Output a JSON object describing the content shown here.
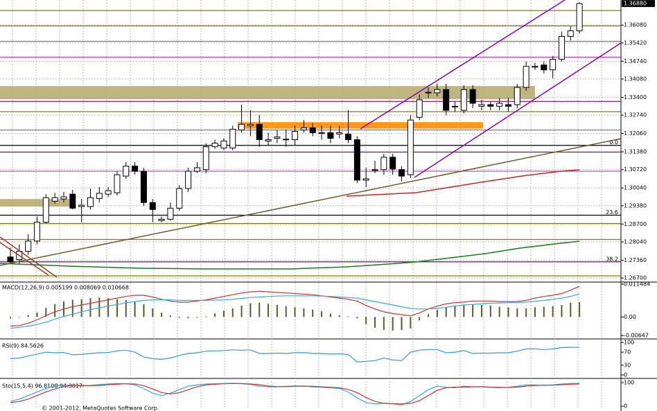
{
  "chart_data": [
    {
      "type": "candlestick",
      "open": [
        1.2748,
        1.2738,
        1.2769,
        1.2807,
        1.2877,
        1.2955,
        1.2963,
        1.2981,
        1.2935,
        1.2935,
        1.2965,
        1.2981,
        1.2986,
        1.3048,
        1.3085,
        1.3066,
        1.295,
        1.2883,
        1.2888,
        1.2929,
        1.3002,
        1.3066,
        1.3072,
        1.3157,
        1.3152,
        1.3152,
        1.3219,
        1.3235,
        1.324,
        1.3178,
        1.3188,
        1.3183,
        1.3183,
        1.3219,
        1.3227,
        1.3206,
        1.3209,
        1.3204,
        1.3204,
        1.3183,
        1.3033,
        1.3069,
        1.3072,
        1.3118,
        1.3072,
        1.3053,
        1.3266,
        1.3357,
        1.3357,
        1.3369,
        1.3305,
        1.3292,
        1.3369,
        1.3307,
        1.3313,
        1.3307,
        1.3313,
        1.3313,
        1.3377,
        1.3452,
        1.346,
        1.3442,
        1.3481,
        1.3566,
        1.3587
      ],
      "high": [
        1.2782,
        1.2795,
        1.2833,
        1.2898,
        1.2981,
        1.2986,
        1.2989,
        1.2997,
        1.2963,
        1.3002,
        1.3007,
        1.3007,
        1.3066,
        1.31,
        1.31,
        1.3079,
        1.2963,
        1.2898,
        1.295,
        1.3015,
        1.3079,
        1.31,
        1.317,
        1.3183,
        1.3188,
        1.3235,
        1.3313,
        1.3292,
        1.3274,
        1.3209,
        1.3219,
        1.3222,
        1.3235,
        1.3256,
        1.3245,
        1.3235,
        1.3235,
        1.3235,
        1.3292,
        1.3196,
        1.3079,
        1.3105,
        1.3131,
        1.3131,
        1.3085,
        1.3274,
        1.3351,
        1.3377,
        1.339,
        1.339,
        1.3325,
        1.3385,
        1.3385,
        1.3331,
        1.3325,
        1.3338,
        1.3338,
        1.339,
        1.3473,
        1.3468,
        1.3473,
        1.3494,
        1.3584,
        1.3603,
        1.3693
      ],
      "low": [
        1.2722,
        1.2722,
        1.2756,
        1.2795,
        1.2872,
        1.2945,
        1.295,
        1.2924,
        1.2877,
        1.2924,
        1.295,
        1.2971,
        1.2976,
        1.3038,
        1.3053,
        1.2937,
        1.2877,
        1.2877,
        1.2883,
        1.2919,
        1.2989,
        1.3059,
        1.3059,
        1.3149,
        1.3144,
        1.3144,
        1.3209,
        1.3196,
        1.3157,
        1.3162,
        1.317,
        1.3157,
        1.3162,
        1.3209,
        1.3196,
        1.3183,
        1.317,
        1.3188,
        1.317,
        1.3022,
        1.3007,
        1.3059,
        1.3053,
        1.3053,
        1.3028,
        1.3041,
        1.3256,
        1.3338,
        1.3344,
        1.3274,
        1.3287,
        1.3281,
        1.33,
        1.3292,
        1.3292,
        1.3292,
        1.3287,
        1.33,
        1.3364,
        1.3442,
        1.3429,
        1.3411,
        1.3473,
        1.3551,
        1.3577
      ],
      "close": [
        1.273,
        1.2769,
        1.2807,
        1.2877,
        1.2968,
        1.2968,
        1.2971,
        1.2929,
        1.294,
        1.2968,
        1.2984,
        1.2994,
        1.3053,
        1.3085,
        1.3066,
        1.295,
        1.2924,
        1.2888,
        1.2929,
        1.3002,
        1.3066,
        1.3079,
        1.3157,
        1.317,
        1.3178,
        1.3222,
        1.324,
        1.324,
        1.3183,
        1.3183,
        1.3193,
        1.3185,
        1.3214,
        1.3227,
        1.3209,
        1.3209,
        1.3188,
        1.3209,
        1.3183,
        1.3033,
        1.3038,
        1.3072,
        1.3118,
        1.3074,
        1.3048,
        1.3256,
        1.3331,
        1.3359,
        1.3369,
        1.3292,
        1.3307,
        1.3369,
        1.3318,
        1.3313,
        1.3307,
        1.3318,
        1.3307,
        1.3377,
        1.3455,
        1.3455,
        1.3442,
        1.3481,
        1.3566,
        1.3587,
        1.3688
      ],
      "ylim": [
        1.266,
        1.3696
      ],
      "yticks": [
        {
          "value": 1.3608,
          "label": "1.36080"
        },
        {
          "value": 1.3542,
          "label": "1.35420"
        },
        {
          "value": 1.3474,
          "label": "1.34740"
        },
        {
          "value": 1.3408,
          "label": "1.34080"
        },
        {
          "value": 1.334,
          "label": "1.33400"
        },
        {
          "value": 1.3274,
          "label": "1.32740"
        },
        {
          "value": 1.3206,
          "label": "1.32060"
        },
        {
          "value": 1.3138,
          "label": "1.31380"
        },
        {
          "value": 1.3072,
          "label": "1.30720"
        },
        {
          "value": 1.3004,
          "label": "1.30040"
        },
        {
          "value": 1.2938,
          "label": "1.29380"
        },
        {
          "value": 1.287,
          "label": "1.28700"
        },
        {
          "value": 1.2804,
          "label": "1.28040"
        },
        {
          "value": 1.2736,
          "label": "1.27360"
        },
        {
          "value": 1.267,
          "label": "1.26700"
        }
      ],
      "last_price": {
        "value": 1.3688,
        "label": "1.36880"
      },
      "levels": [
        {
          "value": 1.3662,
          "color": "#808000"
        },
        {
          "value": 1.3605,
          "color": "#808000"
        },
        {
          "value": 1.3548,
          "color": "#808000"
        },
        {
          "value": 1.3489,
          "color": "#cc33cc"
        },
        {
          "value": 1.3325,
          "color": "#800080"
        },
        {
          "value": 1.3287,
          "color": "#808000"
        },
        {
          "value": 1.3219,
          "color": "#cc33cc"
        },
        {
          "value": 1.3162,
          "color": "#000000",
          "label": "0.0"
        },
        {
          "value": 1.3137,
          "color": "#800080"
        },
        {
          "value": 1.3066,
          "color": "#cc33cc"
        },
        {
          "value": 1.2903,
          "color": "#000000",
          "label": "23.6"
        },
        {
          "value": 1.2872,
          "color": "#808000"
        },
        {
          "value": 1.2813,
          "color": "#808000"
        },
        {
          "value": 1.273,
          "color": "#800080",
          "label": "38.2"
        },
        {
          "value": 1.2678,
          "color": "#808000"
        }
      ],
      "zones": [
        {
          "low": 1.3333,
          "high": 1.3382,
          "color": "#b8ad72"
        },
        {
          "low": 1.3224,
          "high": 1.3248,
          "color": "#ff8c00"
        },
        {
          "low": 1.2935,
          "high": 1.2963,
          "color": "#b8ad72"
        }
      ],
      "grid": true
    },
    {
      "type": "line",
      "title": "MACD(12,26,9) 0.005199 0.008069 0.010668",
      "ylim": [
        -0.00647,
        0.011484
      ],
      "yticks": [
        0.011484,
        {
          "value": 0,
          "label": "0.00"
        },
        -0.00647
      ],
      "series": [
        {
          "style": "bar",
          "color": "#5a5a2a",
          "values": [
            -0.0005,
            -0.0002,
            0.0006,
            0.0015,
            0.0032,
            0.0045,
            0.0055,
            0.006,
            0.0062,
            0.0066,
            0.0068,
            0.0066,
            0.0062,
            0.006,
            0.0055,
            0.0045,
            0.003,
            0.0015,
            0.0005,
            -0.0003,
            -0.0005,
            -0.0003,
            0.0002,
            0.0012,
            0.0022,
            0.003,
            0.004,
            0.0048,
            0.005,
            0.0046,
            0.0042,
            0.0038,
            0.0034,
            0.003,
            0.0026,
            0.002,
            0.0012,
            0.0006,
            0.0002,
            -0.0005,
            -0.0025,
            -0.0038,
            -0.0045,
            -0.0048,
            -0.0046,
            -0.004,
            -0.0012,
            0.001,
            0.0025,
            0.0035,
            0.004,
            0.0042,
            0.0044,
            0.0042,
            0.004,
            0.0036,
            0.0034,
            0.003,
            0.003,
            0.0034,
            0.0036,
            0.0038,
            0.0042,
            0.005,
            0.0052
          ]
        },
        {
          "style": "line",
          "color": "#cc3333",
          "values": [
            -0.0032,
            -0.003,
            -0.0022,
            -0.001,
            0.0005,
            0.0018,
            0.0028,
            0.0036,
            0.0042,
            0.0048,
            0.0054,
            0.006,
            0.0066,
            0.0072,
            0.0076,
            0.0076,
            0.007,
            0.0062,
            0.0056,
            0.0052,
            0.0052,
            0.0056,
            0.006,
            0.0066,
            0.0072,
            0.0078,
            0.0084,
            0.0088,
            0.009,
            0.0088,
            0.0086,
            0.0084,
            0.0082,
            0.008,
            0.0078,
            0.0074,
            0.007,
            0.0066,
            0.0062,
            0.0056,
            0.004,
            0.0028,
            0.0018,
            0.0012,
            0.0008,
            0.0004,
            0.0014,
            0.0028,
            0.0038,
            0.0046,
            0.005,
            0.0052,
            0.0056,
            0.0056,
            0.0056,
            0.0054,
            0.0054,
            0.0054,
            0.0058,
            0.0066,
            0.0072,
            0.0076,
            0.0082,
            0.0094,
            0.0107
          ]
        },
        {
          "style": "line",
          "color": "#33aadd",
          "values": [
            -0.004,
            -0.0036,
            -0.0032,
            -0.0026,
            -0.0018,
            -0.0008,
            0.0002,
            0.001,
            0.0018,
            0.0026,
            0.0032,
            0.0038,
            0.0044,
            0.005,
            0.0054,
            0.0058,
            0.006,
            0.006,
            0.006,
            0.0058,
            0.0058,
            0.0058,
            0.0058,
            0.0059,
            0.006,
            0.0062,
            0.0065,
            0.0068,
            0.007,
            0.0072,
            0.0073,
            0.0074,
            0.0074,
            0.0074,
            0.0074,
            0.0073,
            0.0072,
            0.007,
            0.0068,
            0.0066,
            0.006,
            0.0054,
            0.0048,
            0.0042,
            0.0036,
            0.003,
            0.0028,
            0.0028,
            0.003,
            0.0034,
            0.0038,
            0.0042,
            0.0044,
            0.0046,
            0.0048,
            0.0049,
            0.005,
            0.005,
            0.0052,
            0.0055,
            0.0058,
            0.0062,
            0.0066,
            0.0072,
            0.0081
          ]
        }
      ]
    },
    {
      "type": "line",
      "title": "RSI(9) 84.5626",
      "ylim": [
        0,
        100
      ],
      "yticks": [
        100,
        70,
        30,
        0
      ],
      "series": [
        {
          "style": "line",
          "color": "#3399cc",
          "values": [
            50,
            52,
            58,
            64,
            70,
            68,
            69,
            62,
            63,
            66,
            68,
            69,
            74,
            76,
            70,
            55,
            50,
            48,
            52,
            60,
            66,
            68,
            73,
            74,
            75,
            77,
            76,
            77,
            66,
            66,
            67,
            66,
            68,
            69,
            66,
            66,
            64,
            65,
            63,
            40,
            42,
            44,
            52,
            46,
            44,
            70,
            76,
            78,
            78,
            68,
            70,
            75,
            66,
            67,
            67,
            68,
            68,
            73,
            80,
            80,
            78,
            80,
            84,
            85,
            84.6
          ]
        }
      ]
    },
    {
      "type": "line",
      "title": "Sto(15,5,4) 96.8108 94.3017",
      "ylim": [
        0,
        100
      ],
      "yticks": [
        100,
        0
      ],
      "series": [
        {
          "style": "line",
          "color": "#33aadd",
          "values": [
            20,
            30,
            45,
            60,
            75,
            85,
            90,
            88,
            85,
            88,
            92,
            94,
            96,
            95,
            90,
            75,
            55,
            45,
            55,
            70,
            85,
            90,
            94,
            95,
            96,
            97,
            95,
            92,
            85,
            82,
            82,
            84,
            86,
            85,
            82,
            80,
            78,
            75,
            60,
            35,
            15,
            10,
            12,
            10,
            5,
            20,
            45,
            70,
            85,
            80,
            78,
            85,
            82,
            82,
            80,
            78,
            80,
            85,
            90,
            90,
            88,
            90,
            94,
            96,
            96.8
          ]
        },
        {
          "style": "line",
          "color": "#cc3333",
          "values": [
            15,
            20,
            30,
            45,
            60,
            73,
            83,
            88,
            88,
            87,
            88,
            91,
            93,
            95,
            94,
            87,
            73,
            58,
            52,
            57,
            70,
            82,
            90,
            93,
            95,
            96,
            96,
            94,
            91,
            86,
            83,
            83,
            84,
            85,
            84,
            82,
            80,
            78,
            71,
            57,
            37,
            20,
            12,
            11,
            9,
            12,
            23,
            45,
            67,
            78,
            81,
            81,
            82,
            83,
            81,
            80,
            79,
            81,
            85,
            88,
            89,
            89,
            91,
            93,
            94.3
          ]
        }
      ]
    }
  ],
  "footer": "© 2001-2012, MetaQuotes Software Corp."
}
